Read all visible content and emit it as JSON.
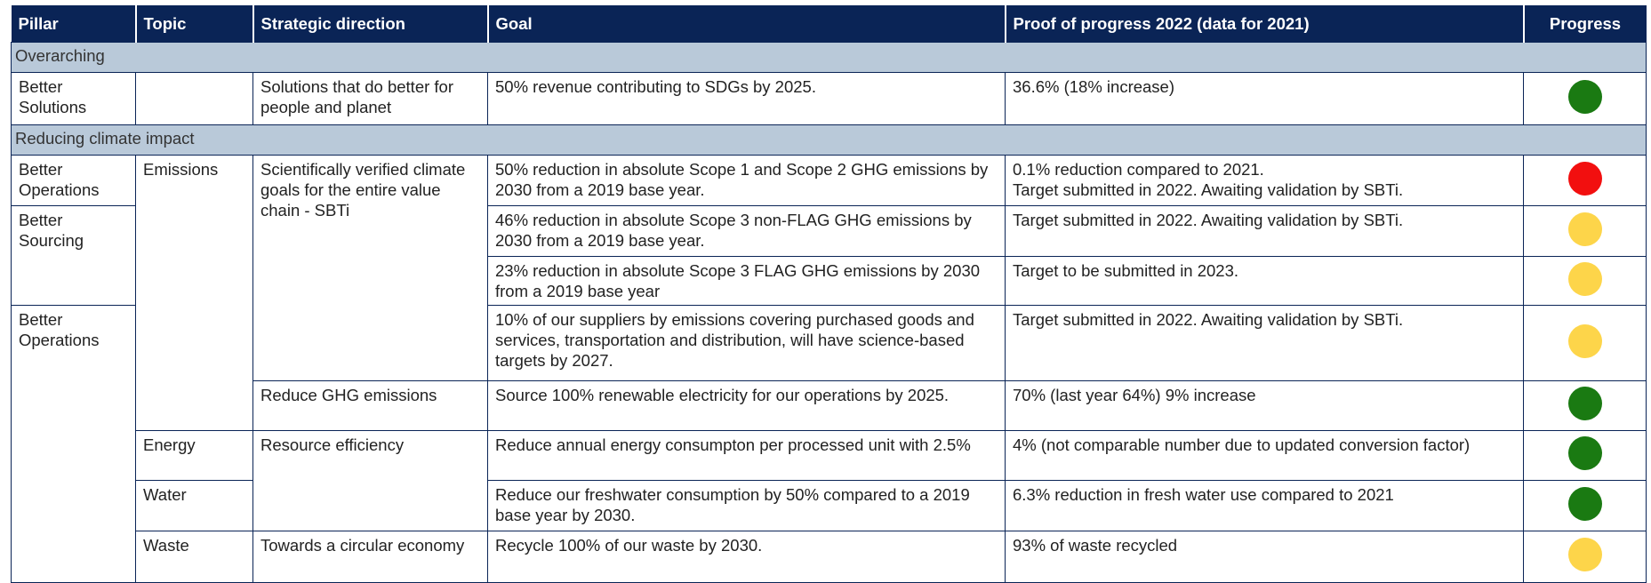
{
  "table": {
    "header": [
      "Pillar",
      "Topic",
      "Strategic direction",
      "Goal",
      "Proof of progress 2022 (data for 2021)",
      "Progress"
    ],
    "sections": [
      {
        "title": "Overarching",
        "rows": [
          {
            "pillar": "Better Solutions",
            "direction": "Solutions that do better for people and planet",
            "goal": "50% revenue contributing to SDGs by 2025.",
            "proof": [
              "36.6% (18% increase)"
            ],
            "progress": "#1a7a12"
          }
        ]
      },
      {
        "title": "Reducing climate impact",
        "rows": [
          {
            "pillar": "Better Operations",
            "topic": "Emissions",
            "direction": "Scientifically verified climate goals for the entire value chain - SBTi",
            "goal": "50% reduction in absolute Scope 1 and Scope 2 GHG emissions by 2030 from a 2019 base year.",
            "proof": [
              "0.1% reduction compared to 2021.",
              "Target submitted in 2022. Awaiting validation by SBTi."
            ],
            "progress": "#f20f0f"
          },
          {
            "pillar": "Better Sourcing",
            "goal": "46% reduction in absolute Scope 3 non-FLAG GHG emissions by 2030 from a 2019 base year.",
            "proof": [
              "Target submitted in 2022. Awaiting validation by SBTi."
            ],
            "progress": "#fdd54a"
          },
          {
            "goal": "23% reduction in absolute Scope 3 FLAG GHG emissions by 2030 from a 2019 base year",
            "proof": [
              "Target to be submitted in 2023."
            ],
            "progress": "#fdd54a"
          },
          {
            "pillar": "Better Operations",
            "goal": "10% of our suppliers by emissions covering purchased goods and services, transportation and distribution, will have science-based targets by 2027.",
            "proof": [
              "Target submitted in 2022. Awaiting validation by SBTi."
            ],
            "progress": "#fdd54a"
          },
          {
            "direction": "Reduce GHG emissions",
            "goal": "Source 100% renewable electricity for our operations by 2025.",
            "proof": [
              "70% (last year 64%) 9% increase"
            ],
            "progress": "#1a7a12"
          },
          {
            "topic": "Energy",
            "direction": "Resource efficiency",
            "goal": "Reduce annual energy consumpton per processed unit with 2.5%",
            "proof": [
              "4% (not comparable number due to updated conversion factor)"
            ],
            "progress": "#1a7a12"
          },
          {
            "topic": "Water",
            "goal": "Reduce our freshwater consumption by 50% compared to a 2019 base year by 2030.",
            "proof": [
              "6.3% reduction in fresh water use compared to 2021"
            ],
            "progress": "#1a7a12"
          },
          {
            "topic": "Waste",
            "direction": "Towards a circular economy",
            "goal": "Recycle 100% of our waste by 2030.",
            "proof": [
              "93% of waste recycled"
            ],
            "progress": "#fdd54a"
          }
        ]
      }
    ]
  }
}
